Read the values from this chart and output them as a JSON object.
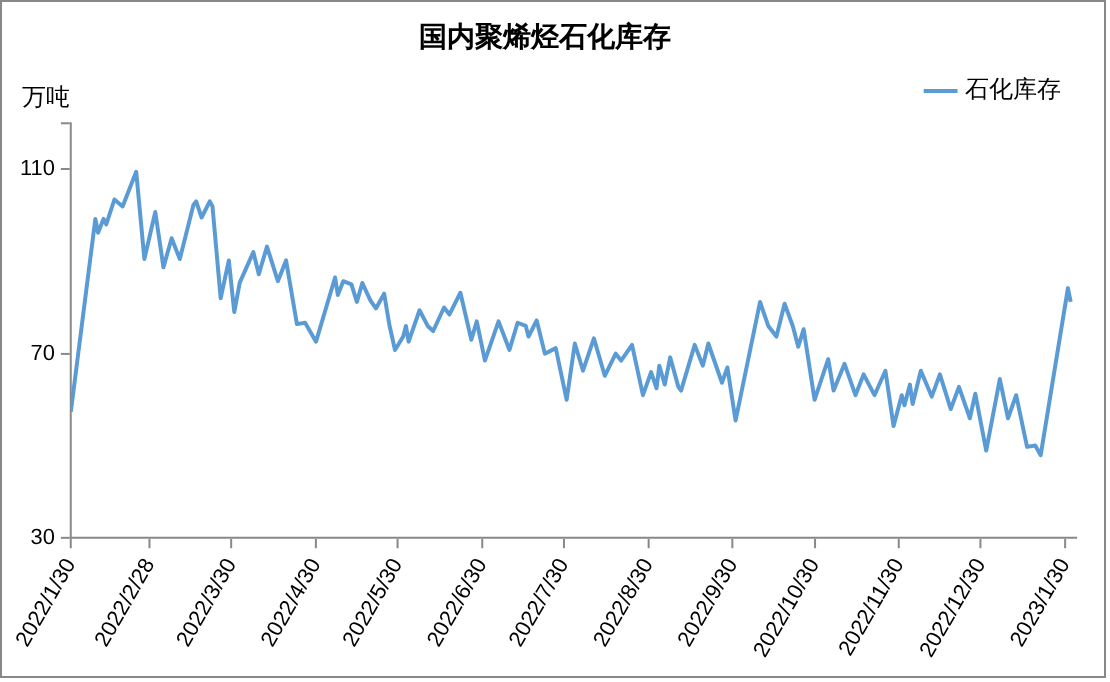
{
  "chart_data": {
    "type": "line",
    "title": "国内聚烯烃石化库存",
    "ylabel": "万吨",
    "x": [
      "2022-01-30",
      "2022-02-08",
      "2022-02-09",
      "2022-02-11",
      "2022-02-12",
      "2022-02-15",
      "2022-02-18",
      "2022-02-23",
      "2022-02-26",
      "2022-03-02",
      "2022-03-05",
      "2022-03-08",
      "2022-03-11",
      "2022-03-16",
      "2022-03-17",
      "2022-03-19",
      "2022-03-22",
      "2022-03-23",
      "2022-03-26",
      "2022-03-29",
      "2022-03-31",
      "2022-04-02",
      "2022-04-07",
      "2022-04-09",
      "2022-04-12",
      "2022-04-16",
      "2022-04-19",
      "2022-04-23",
      "2022-04-26",
      "2022-04-30",
      "2022-05-07",
      "2022-05-08",
      "2022-05-10",
      "2022-05-13",
      "2022-05-15",
      "2022-05-17",
      "2022-05-20",
      "2022-05-22",
      "2022-05-25",
      "2022-05-27",
      "2022-05-29",
      "2022-06-01",
      "2022-06-02",
      "2022-06-03",
      "2022-06-07",
      "2022-06-10",
      "2022-06-12",
      "2022-06-16",
      "2022-06-18",
      "2022-06-22",
      "2022-06-26",
      "2022-06-28",
      "2022-07-01",
      "2022-07-06",
      "2022-07-10",
      "2022-07-13",
      "2022-07-16",
      "2022-07-17",
      "2022-07-20",
      "2022-07-23",
      "2022-07-27",
      "2022-07-31",
      "2022-08-03",
      "2022-08-06",
      "2022-08-10",
      "2022-08-14",
      "2022-08-18",
      "2022-08-20",
      "2022-08-24",
      "2022-08-28",
      "2022-08-31",
      "2022-09-02",
      "2022-09-03",
      "2022-09-05",
      "2022-09-07",
      "2022-09-10",
      "2022-09-11",
      "2022-09-16",
      "2022-09-19",
      "2022-09-21",
      "2022-09-26",
      "2022-09-28",
      "2022-10-01",
      "2022-10-10",
      "2022-10-13",
      "2022-10-16",
      "2022-10-19",
      "2022-10-22",
      "2022-10-24",
      "2022-10-26",
      "2022-10-30",
      "2022-11-04",
      "2022-11-06",
      "2022-11-10",
      "2022-11-14",
      "2022-11-17",
      "2022-11-21",
      "2022-11-25",
      "2022-11-28",
      "2022-12-01",
      "2022-12-02",
      "2022-12-04",
      "2022-12-05",
      "2022-12-08",
      "2022-12-12",
      "2022-12-15",
      "2022-12-19",
      "2022-12-22",
      "2022-12-26",
      "2022-12-28",
      "2023-01-01",
      "2023-01-06",
      "2023-01-09",
      "2023-01-12",
      "2023-01-16",
      "2023-01-19",
      "2023-01-21",
      "2023-01-31",
      "2023-02-01"
    ],
    "series": [
      {
        "name": "石化库存",
        "color": "#5b9bd5",
        "values": [
          57.4,
          99.2,
          96.2,
          99.2,
          98,
          103.4,
          101.9,
          109.4,
          90.5,
          100.7,
          88.7,
          95,
          90.5,
          102.2,
          103,
          99.5,
          103,
          101.9,
          82,
          90.2,
          79,
          85.4,
          92,
          87.2,
          93.2,
          85.7,
          90.2,
          76.4,
          76.7,
          72.6,
          86.5,
          82.7,
          85.7,
          85,
          81.2,
          85.3,
          81.5,
          79.8,
          83,
          76,
          70.8,
          73.7,
          76,
          72.6,
          79.4,
          76,
          74.9,
          80,
          78.5,
          83.2,
          73,
          77,
          68.5,
          77,
          70.8,
          76.7,
          76,
          73.7,
          77.2,
          70,
          71.2,
          60,
          72.2,
          66.3,
          73.3,
          65.2,
          70,
          68.5,
          71.9,
          61,
          66,
          62.5,
          67.4,
          63.3,
          69.2,
          62.8,
          62,
          71.9,
          67.4,
          72.2,
          63.7,
          67,
          55.5,
          81.2,
          76,
          73.7,
          80.8,
          76,
          71.5,
          75.3,
          60,
          68.8,
          62,
          67.8,
          61,
          65.5,
          61,
          66.3,
          54.3,
          61,
          58.8,
          63.3,
          59.1,
          66.3,
          60.7,
          65.5,
          58,
          62.8,
          56,
          61.3,
          49,
          64.5,
          56,
          61,
          49.8,
          50.1,
          48,
          84.2,
          81.2
        ]
      }
    ],
    "xlim": [
      "2022-01-30",
      "2023-02-03"
    ],
    "xticks": [
      {
        "value": "2022-01-30",
        "label": "2022/1/30"
      },
      {
        "value": "2022-02-28",
        "label": "2022/2/28"
      },
      {
        "value": "2022-03-30",
        "label": "2022/3/30"
      },
      {
        "value": "2022-04-30",
        "label": "2022/4/30"
      },
      {
        "value": "2022-05-30",
        "label": "2022/5/30"
      },
      {
        "value": "2022-06-30",
        "label": "2022/6/30"
      },
      {
        "value": "2022-07-30",
        "label": "2022/7/30"
      },
      {
        "value": "2022-08-30",
        "label": "2022/8/30"
      },
      {
        "value": "2022-09-30",
        "label": "2022/9/30"
      },
      {
        "value": "2022-10-30",
        "label": "2022/10/30"
      },
      {
        "value": "2022-11-30",
        "label": "2022/11/30"
      },
      {
        "value": "2022-12-30",
        "label": "2022/12/30"
      },
      {
        "value": "2023-01-30",
        "label": "2023/1/30"
      }
    ],
    "ylim": [
      30,
      120
    ],
    "yticks": [
      30,
      70,
      110,
      {
        "value": 120,
        "label": null
      }
    ],
    "grid": false,
    "legend": "top right",
    "marker": "none",
    "line_style": "solid"
  }
}
